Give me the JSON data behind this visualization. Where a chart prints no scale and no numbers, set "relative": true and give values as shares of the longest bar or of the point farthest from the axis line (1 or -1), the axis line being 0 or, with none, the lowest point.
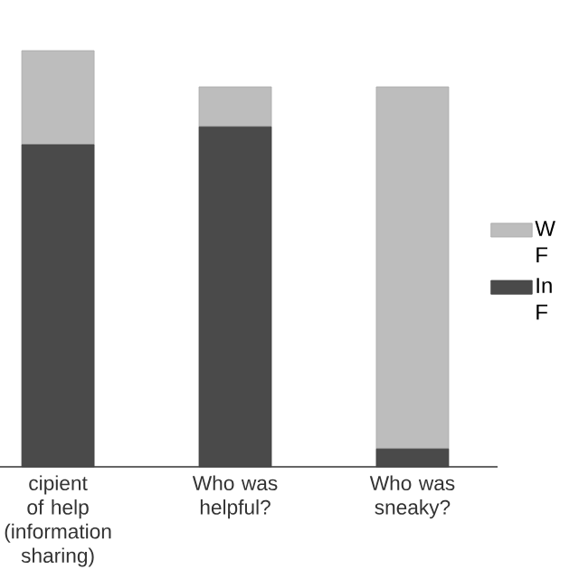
{
  "chart_data": {
    "type": "bar",
    "stacked": true,
    "relative": true,
    "legend": "right",
    "categories": [
      "cipient of help (information sharing)",
      "Who was helpful?",
      "Who was sneaky?"
    ],
    "series": [
      {
        "name": "In F",
        "color": "#4a4a4a",
        "values": [
          0.774,
          0.817,
          0.043
        ]
      },
      {
        "name": "W F",
        "color": "#bdbdbd",
        "values": [
          0.226,
          0.096,
          0.87
        ]
      }
    ]
  }
}
